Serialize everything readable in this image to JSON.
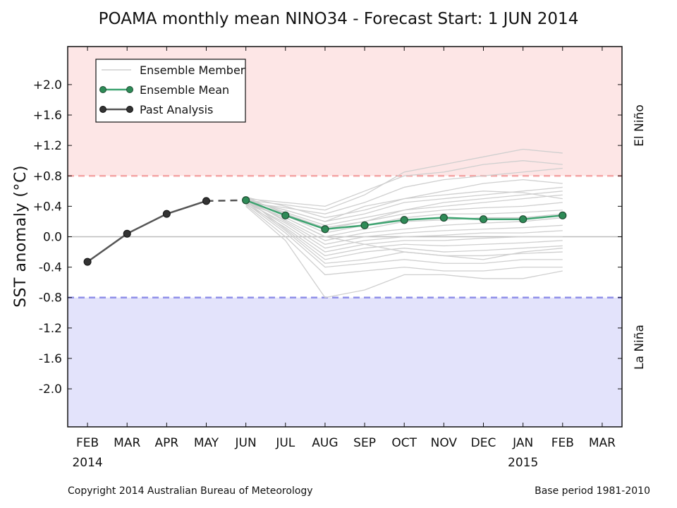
{
  "chart_data": {
    "type": "line",
    "title": "POAMA monthly mean NINO34 - Forecast Start: 1 JUN 2014",
    "xlabel": "",
    "ylabel": "SST anomaly (°C)",
    "x_tick_labels": [
      "FEB",
      "MAR",
      "APR",
      "MAY",
      "JUN",
      "JUL",
      "AUG",
      "SEP",
      "OCT",
      "NOV",
      "DEC",
      "JAN",
      "FEB",
      "MAR"
    ],
    "x_year_labels": [
      {
        "index": 0,
        "text": "2014"
      },
      {
        "index": 11,
        "text": "2015"
      }
    ],
    "y_tick_labels": [
      "-2.0",
      "-1.6",
      "-1.2",
      "-0.8",
      "-0.4",
      "0.0",
      "+0.4",
      "+0.8",
      "+1.2",
      "+1.6",
      "+2.0"
    ],
    "y_tick_values": [
      -2.0,
      -1.6,
      -1.2,
      -0.8,
      -0.4,
      0.0,
      0.4,
      0.8,
      1.2,
      1.6,
      2.0
    ],
    "xlim": [
      -0.5,
      13.5
    ],
    "ylim": [
      -2.5,
      2.5
    ],
    "thresholds": {
      "el_nino": 0.8,
      "la_nina": -0.8
    },
    "band_labels": {
      "el_nino": "El Niño",
      "la_nina": "La Niña"
    },
    "colors": {
      "el_nino_band": "#fde6e6",
      "la_nina_band": "#e3e3fb",
      "el_nino_line": "#f4a5a5",
      "la_nina_line": "#8f8fe8",
      "mean": "#3da370",
      "mean_marker": "#2e8b57",
      "past": "#555555",
      "past_marker": "#333333",
      "ensemble": "#cfcfcf"
    },
    "legend": {
      "position": "top-left",
      "entries": [
        "Ensemble Member",
        "Ensemble Mean",
        "Past Analysis"
      ]
    },
    "series": [
      {
        "name": "Past Analysis",
        "x": [
          0,
          1,
          2,
          3
        ],
        "values": [
          -0.33,
          0.04,
          0.3,
          0.47
        ]
      },
      {
        "name": "Ensemble Mean",
        "x": [
          4,
          5,
          6,
          7,
          8,
          9,
          10,
          11,
          12
        ],
        "values": [
          0.48,
          0.28,
          0.1,
          0.15,
          0.22,
          0.25,
          0.23,
          0.23,
          0.28
        ]
      }
    ],
    "past_to_forecast_link": {
      "x": [
        3,
        4
      ],
      "values": [
        0.47,
        0.48
      ]
    },
    "ensemble_members": {
      "x": [
        4,
        5,
        6,
        7,
        8,
        9,
        10,
        11,
        12
      ],
      "members": [
        [
          0.48,
          0.42,
          0.35,
          0.55,
          0.85,
          0.95,
          1.05,
          1.15,
          1.1
        ],
        [
          0.5,
          0.45,
          0.4,
          0.6,
          0.8,
          0.85,
          0.95,
          1.0,
          0.95
        ],
        [
          0.45,
          0.38,
          0.3,
          0.45,
          0.65,
          0.75,
          0.8,
          0.85,
          0.9
        ],
        [
          0.52,
          0.4,
          0.25,
          0.35,
          0.5,
          0.6,
          0.7,
          0.75,
          0.7
        ],
        [
          0.47,
          0.35,
          0.2,
          0.3,
          0.45,
          0.5,
          0.55,
          0.6,
          0.65
        ],
        [
          0.5,
          0.32,
          0.15,
          0.25,
          0.35,
          0.4,
          0.45,
          0.5,
          0.55
        ],
        [
          0.46,
          0.3,
          0.12,
          0.2,
          0.3,
          0.35,
          0.38,
          0.4,
          0.45
        ],
        [
          0.49,
          0.28,
          0.05,
          0.15,
          0.25,
          0.3,
          0.3,
          0.32,
          0.35
        ],
        [
          0.44,
          0.25,
          0.0,
          0.1,
          0.2,
          0.22,
          0.25,
          0.25,
          0.3
        ],
        [
          0.48,
          0.22,
          -0.05,
          0.05,
          0.1,
          0.15,
          0.18,
          0.2,
          0.25
        ],
        [
          0.5,
          0.2,
          -0.1,
          0.0,
          0.05,
          0.08,
          0.1,
          0.12,
          0.15
        ],
        [
          0.45,
          0.18,
          -0.15,
          -0.05,
          0.0,
          0.02,
          0.05,
          0.05,
          0.08
        ],
        [
          0.47,
          0.15,
          -0.2,
          -0.1,
          -0.05,
          -0.05,
          -0.02,
          0.0,
          0.0
        ],
        [
          0.43,
          0.12,
          -0.25,
          -0.15,
          -0.1,
          -0.12,
          -0.1,
          -0.08,
          -0.05
        ],
        [
          0.5,
          0.1,
          -0.3,
          -0.2,
          -0.15,
          -0.2,
          -0.18,
          -0.15,
          -0.12
        ],
        [
          0.46,
          0.08,
          -0.35,
          -0.3,
          -0.2,
          -0.25,
          -0.25,
          -0.22,
          -0.2
        ],
        [
          0.44,
          0.05,
          -0.4,
          -0.35,
          -0.3,
          -0.35,
          -0.35,
          -0.3,
          -0.3
        ],
        [
          0.42,
          0.0,
          -0.5,
          -0.45,
          -0.4,
          -0.45,
          -0.45,
          -0.4,
          -0.4
        ],
        [
          0.4,
          -0.05,
          -0.8,
          -0.7,
          -0.5,
          -0.5,
          -0.55,
          -0.55,
          -0.45
        ],
        [
          0.52,
          0.3,
          0.1,
          0.2,
          0.35,
          0.45,
          0.5,
          0.55,
          0.6
        ],
        [
          0.48,
          0.35,
          0.2,
          0.4,
          0.5,
          0.55,
          0.6,
          0.58,
          0.5
        ],
        [
          0.46,
          0.25,
          0.0,
          -0.1,
          -0.2,
          -0.25,
          -0.3,
          -0.2,
          -0.15
        ]
      ]
    }
  },
  "footer": {
    "copyright": "Copyright 2014 Australian Bureau of Meteorology",
    "base_period": "Base period 1981-2010"
  }
}
